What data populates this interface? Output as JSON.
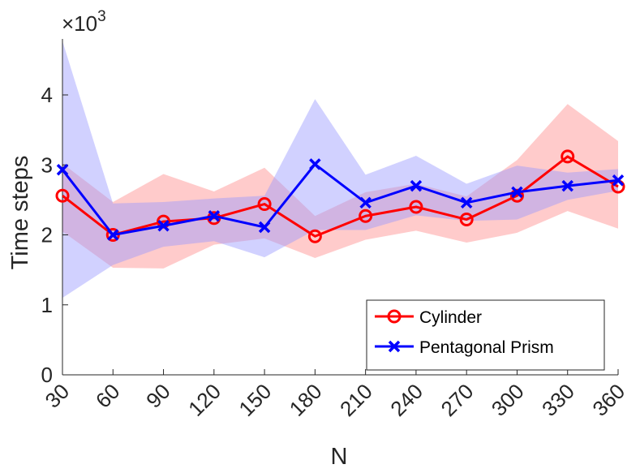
{
  "chart_data": {
    "type": "line",
    "title": "",
    "xlabel": "N",
    "ylabel": "Time steps",
    "y_exponent_prefix": "×10",
    "y_exponent_power": "3",
    "categories": [
      "30",
      "60",
      "90",
      "120",
      "150",
      "180",
      "210",
      "240",
      "270",
      "300",
      "330",
      "360"
    ],
    "x": [
      30,
      60,
      90,
      120,
      150,
      180,
      210,
      240,
      270,
      300,
      330,
      360
    ],
    "xlim": [
      30,
      360
    ],
    "ylim": [
      0,
      4.8
    ],
    "yticks": [
      0,
      1,
      2,
      3,
      4
    ],
    "ytick_labels": [
      "0",
      "1",
      "2",
      "3",
      "4"
    ],
    "legend_position": "bottom-right",
    "series": [
      {
        "name": "Cylinder",
        "color": "#ff0000",
        "band_color": "#ff8c8c",
        "marker": "circle",
        "values": [
          2.56,
          2.0,
          2.19,
          2.24,
          2.44,
          1.98,
          2.27,
          2.4,
          2.22,
          2.56,
          3.12,
          2.69
        ],
        "band_lower": [
          2.05,
          1.53,
          1.52,
          1.86,
          1.95,
          1.67,
          1.93,
          2.06,
          1.89,
          2.03,
          2.34,
          2.09
        ],
        "band_upper": [
          3.02,
          2.47,
          2.87,
          2.62,
          2.96,
          2.27,
          2.61,
          2.73,
          2.55,
          3.07,
          3.87,
          3.34
        ]
      },
      {
        "name": "Pentagonal Prism",
        "color": "#0000ff",
        "band_color": "#9999ff",
        "marker": "x",
        "values": [
          2.93,
          2.0,
          2.13,
          2.27,
          2.11,
          3.01,
          2.46,
          2.7,
          2.46,
          2.61,
          2.7,
          2.78
        ],
        "band_lower": [
          1.1,
          1.57,
          1.83,
          1.91,
          1.68,
          2.07,
          2.07,
          2.28,
          2.2,
          2.22,
          2.5,
          2.63
        ],
        "band_upper": [
          4.77,
          2.45,
          2.47,
          2.52,
          2.56,
          3.94,
          2.86,
          3.13,
          2.73,
          2.99,
          2.89,
          2.94
        ]
      }
    ]
  }
}
